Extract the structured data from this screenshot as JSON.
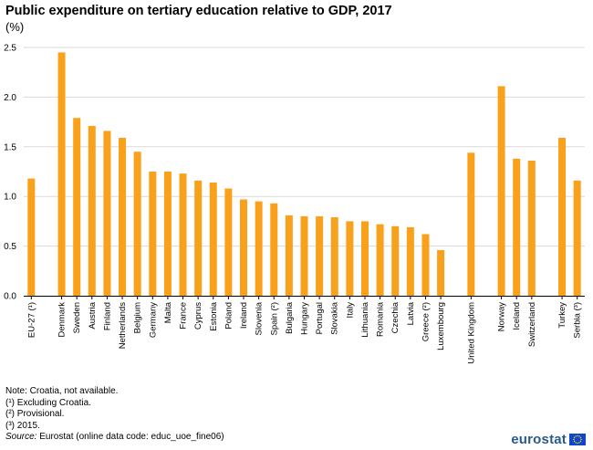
{
  "header": {
    "title": "Public expenditure on tertiary education relative to GDP, 2017",
    "unit": "(%)"
  },
  "chart_data": {
    "type": "bar",
    "title": "Public expenditure on tertiary education relative to GDP, 2017",
    "ylabel": "(%)",
    "xlabel": "",
    "ylim": [
      0,
      2.5
    ],
    "yticks": [
      "0.0",
      "0.5",
      "1.0",
      "1.5",
      "2.0",
      "2.5"
    ],
    "grid": true,
    "legend": "none",
    "bar_color": "#f9a11b",
    "categories": [
      "EU-27 (¹)",
      "Denmark",
      "Sweden",
      "Austria",
      "Finland",
      "Netherlands",
      "Belgium",
      "Germany",
      "Malta",
      "France",
      "Cyprus",
      "Estonia",
      "Poland",
      "Ireland",
      "Slovenia",
      "Spain (²)",
      "Bulgaria",
      "Hungary",
      "Portugal",
      "Slovakia",
      "Italy",
      "Lithuania",
      "Romania",
      "Czechia",
      "Latvia",
      "Greece (²)",
      "Luxembourg",
      "United Kingdom",
      "Norway",
      "Iceland",
      "Switzerland",
      "Turkey",
      "Serbia (³)"
    ],
    "values": [
      1.18,
      2.45,
      1.79,
      1.71,
      1.66,
      1.59,
      1.45,
      1.25,
      1.25,
      1.23,
      1.16,
      1.14,
      1.08,
      0.97,
      0.95,
      0.93,
      0.81,
      0.8,
      0.8,
      0.79,
      0.75,
      0.75,
      0.72,
      0.7,
      0.69,
      0.62,
      0.46,
      1.44,
      2.11,
      1.38,
      1.36,
      1.59,
      1.16
    ],
    "slots": [
      0,
      2,
      3,
      4,
      5,
      6,
      7,
      8,
      9,
      10,
      11,
      12,
      13,
      14,
      15,
      16,
      17,
      18,
      19,
      20,
      21,
      22,
      23,
      24,
      25,
      26,
      27,
      29,
      31,
      32,
      33,
      35,
      36
    ]
  },
  "notes": {
    "note": "Note: Croatia, not available.",
    "fn1": "(¹) Excluding Croatia.",
    "fn2": "(²) Provisional.",
    "fn3": "(³) 2015.",
    "source_label": "Source:",
    "source_text": " Eurostat (online data code: educ_uoe_fine06)"
  },
  "branding": {
    "logo_text": "eurostat",
    "flag_color": "#0e47cb",
    "star_color": "#ffd617"
  }
}
